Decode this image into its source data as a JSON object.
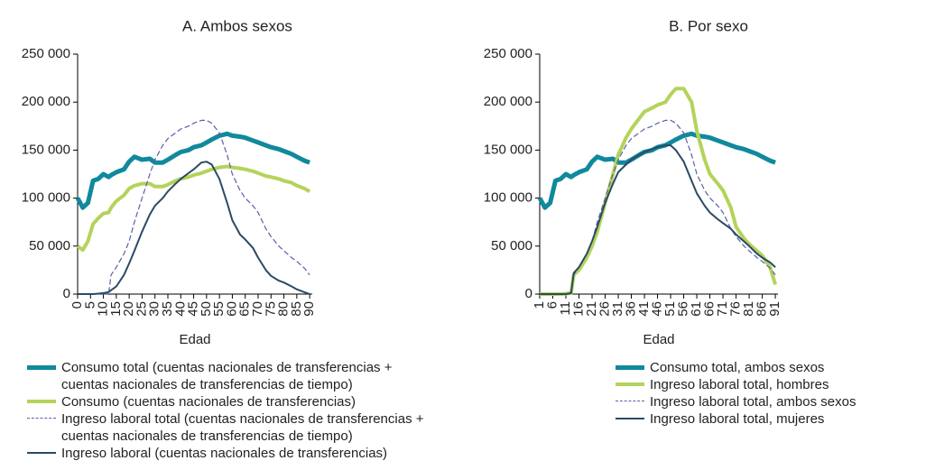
{
  "chart_data": [
    {
      "type": "line",
      "title": "A. Ambos sexos",
      "x_label": "Edad",
      "x": [
        0,
        2,
        4,
        6,
        8,
        10,
        12,
        13,
        15,
        18,
        20,
        22,
        25,
        28,
        30,
        33,
        35,
        38,
        40,
        43,
        45,
        48,
        50,
        52,
        55,
        58,
        60,
        63,
        65,
        68,
        70,
        73,
        75,
        78,
        80,
        83,
        85,
        88,
        90
      ],
      "xlim": [
        0,
        91
      ],
      "xticks": [
        0,
        5,
        10,
        15,
        20,
        25,
        30,
        35,
        40,
        45,
        50,
        55,
        60,
        65,
        70,
        75,
        80,
        85,
        90
      ],
      "ylim": [
        0,
        250000
      ],
      "yticks": [
        0,
        {
          "value": 50000,
          "label": "50 000"
        },
        {
          "value": 100000,
          "label": "100 000"
        },
        {
          "value": 150000,
          "label": "150 000"
        },
        {
          "value": 200000,
          "label": "200 000"
        },
        {
          "value": 250000,
          "label": "250 000"
        }
      ],
      "series": [
        {
          "name": "Consumo total (cuentas nacionales de transferencias + cuentas nacionales de transferencias de tiempo)",
          "color": "#10899c",
          "line_style": "solid",
          "values": [
            100000,
            90000,
            95000,
            118000,
            120000,
            125000,
            122000,
            124000,
            127000,
            130000,
            138000,
            143000,
            140000,
            141000,
            137000,
            137000,
            140000,
            145000,
            148000,
            150000,
            153000,
            155000,
            158000,
            161000,
            165000,
            167000,
            165000,
            164000,
            163000,
            160000,
            158000,
            155000,
            153000,
            151000,
            149000,
            146000,
            143000,
            139000,
            137000
          ]
        },
        {
          "name": "Consumo (cuentas nacionales de transferencias)",
          "color": "#b4d35a",
          "line_style": "solid",
          "values": [
            50000,
            46000,
            55000,
            73000,
            79000,
            84000,
            85000,
            90000,
            97000,
            103000,
            110000,
            113000,
            115000,
            115000,
            112000,
            112000,
            114000,
            118000,
            120000,
            122000,
            124000,
            126000,
            128000,
            130000,
            132000,
            133000,
            132000,
            131000,
            130000,
            128000,
            126000,
            123000,
            122000,
            120000,
            118000,
            116000,
            113000,
            110000,
            107000
          ]
        },
        {
          "name": "Ingreso laboral total (cuentas nacionales de transferencias + cuentas nacionales de transferencias de tiempo)",
          "color": "#5a5ea8",
          "line_style": "dashed",
          "values": [
            0,
            0,
            0,
            0,
            0,
            0,
            0,
            20000,
            28000,
            42000,
            55000,
            75000,
            100000,
            125000,
            140000,
            155000,
            162000,
            168000,
            172000,
            175000,
            178000,
            181000,
            181000,
            178000,
            168000,
            145000,
            125000,
            108000,
            100000,
            92000,
            85000,
            68000,
            60000,
            50000,
            45000,
            38000,
            34000,
            27000,
            20000
          ]
        },
        {
          "name": "Ingreso laboral (cuentas nacionales de transferencias)",
          "color": "#2a4a66",
          "line_style": "solid",
          "values": [
            0,
            0,
            0,
            0,
            500,
            1000,
            2000,
            4000,
            8000,
            20000,
            32000,
            45000,
            65000,
            83000,
            92000,
            100000,
            107000,
            115000,
            120000,
            126000,
            130000,
            137000,
            138000,
            135000,
            120000,
            95000,
            77000,
            62000,
            57000,
            48000,
            38000,
            25000,
            19000,
            14000,
            12000,
            8000,
            5000,
            2000,
            0
          ]
        }
      ]
    },
    {
      "type": "line",
      "title": "B. Por sexo",
      "x_label": "Edad",
      "x": [
        1,
        3,
        5,
        7,
        9,
        11,
        13,
        14,
        16,
        19,
        21,
        23,
        26,
        29,
        31,
        34,
        36,
        39,
        41,
        44,
        46,
        49,
        51,
        53,
        56,
        59,
        61,
        64,
        66,
        69,
        71,
        74,
        76,
        79,
        81,
        84,
        86,
        89,
        91
      ],
      "xlim": [
        1,
        92
      ],
      "xticks": [
        1,
        6,
        11,
        16,
        21,
        26,
        31,
        36,
        41,
        46,
        51,
        56,
        61,
        66,
        71,
        76,
        81,
        86,
        91
      ],
      "ylim": [
        0,
        250000
      ],
      "yticks": [
        0,
        {
          "value": 50000,
          "label": "50 000"
        },
        {
          "value": 100000,
          "label": "100 000"
        },
        {
          "value": 150000,
          "label": "150 000"
        },
        {
          "value": 200000,
          "label": "200 000"
        },
        {
          "value": 250000,
          "label": "250 000"
        }
      ],
      "series": [
        {
          "name": "Consumo total, ambos sexos",
          "color": "#10899c",
          "line_style": "solid",
          "values": [
            100000,
            90000,
            95000,
            118000,
            120000,
            125000,
            122000,
            124000,
            127000,
            130000,
            138000,
            143000,
            140000,
            141000,
            137000,
            137000,
            140000,
            145000,
            148000,
            150000,
            153000,
            155000,
            158000,
            161000,
            165000,
            167000,
            165000,
            164000,
            163000,
            160000,
            158000,
            155000,
            153000,
            151000,
            149000,
            146000,
            143000,
            139000,
            137000
          ]
        },
        {
          "name": "Ingreso laboral total, hombres",
          "color": "#b4d35a",
          "line_style": "solid",
          "values": [
            0,
            0,
            0,
            0,
            0,
            500,
            1000,
            20000,
            25000,
            38000,
            50000,
            65000,
            95000,
            125000,
            145000,
            163000,
            172000,
            183000,
            190000,
            194000,
            197000,
            200000,
            208000,
            214000,
            214000,
            200000,
            170000,
            140000,
            125000,
            115000,
            108000,
            90000,
            70000,
            58000,
            52000,
            45000,
            40000,
            28000,
            10000
          ]
        },
        {
          "name": "Ingreso laboral total, ambos sexos",
          "color": "#5a5ea8",
          "line_style": "dashed",
          "values": [
            0,
            0,
            0,
            0,
            0,
            0,
            0,
            20000,
            28000,
            42000,
            55000,
            75000,
            100000,
            125000,
            140000,
            155000,
            162000,
            168000,
            172000,
            175000,
            178000,
            181000,
            181000,
            178000,
            168000,
            145000,
            125000,
            108000,
            100000,
            92000,
            85000,
            68000,
            60000,
            50000,
            45000,
            38000,
            34000,
            27000,
            20000
          ]
        },
        {
          "name": "Ingreso laboral total, mujeres",
          "color": "#2a4a66",
          "line_style": "solid",
          "values": [
            0,
            0,
            0,
            0,
            0,
            0,
            1000,
            22000,
            28000,
            42000,
            55000,
            70000,
            95000,
            115000,
            127000,
            135000,
            140000,
            145000,
            148000,
            151000,
            153000,
            155000,
            155000,
            150000,
            138000,
            118000,
            105000,
            92000,
            85000,
            78000,
            74000,
            68000,
            62000,
            55000,
            50000,
            42000,
            38000,
            33000,
            28000
          ]
        }
      ]
    }
  ]
}
